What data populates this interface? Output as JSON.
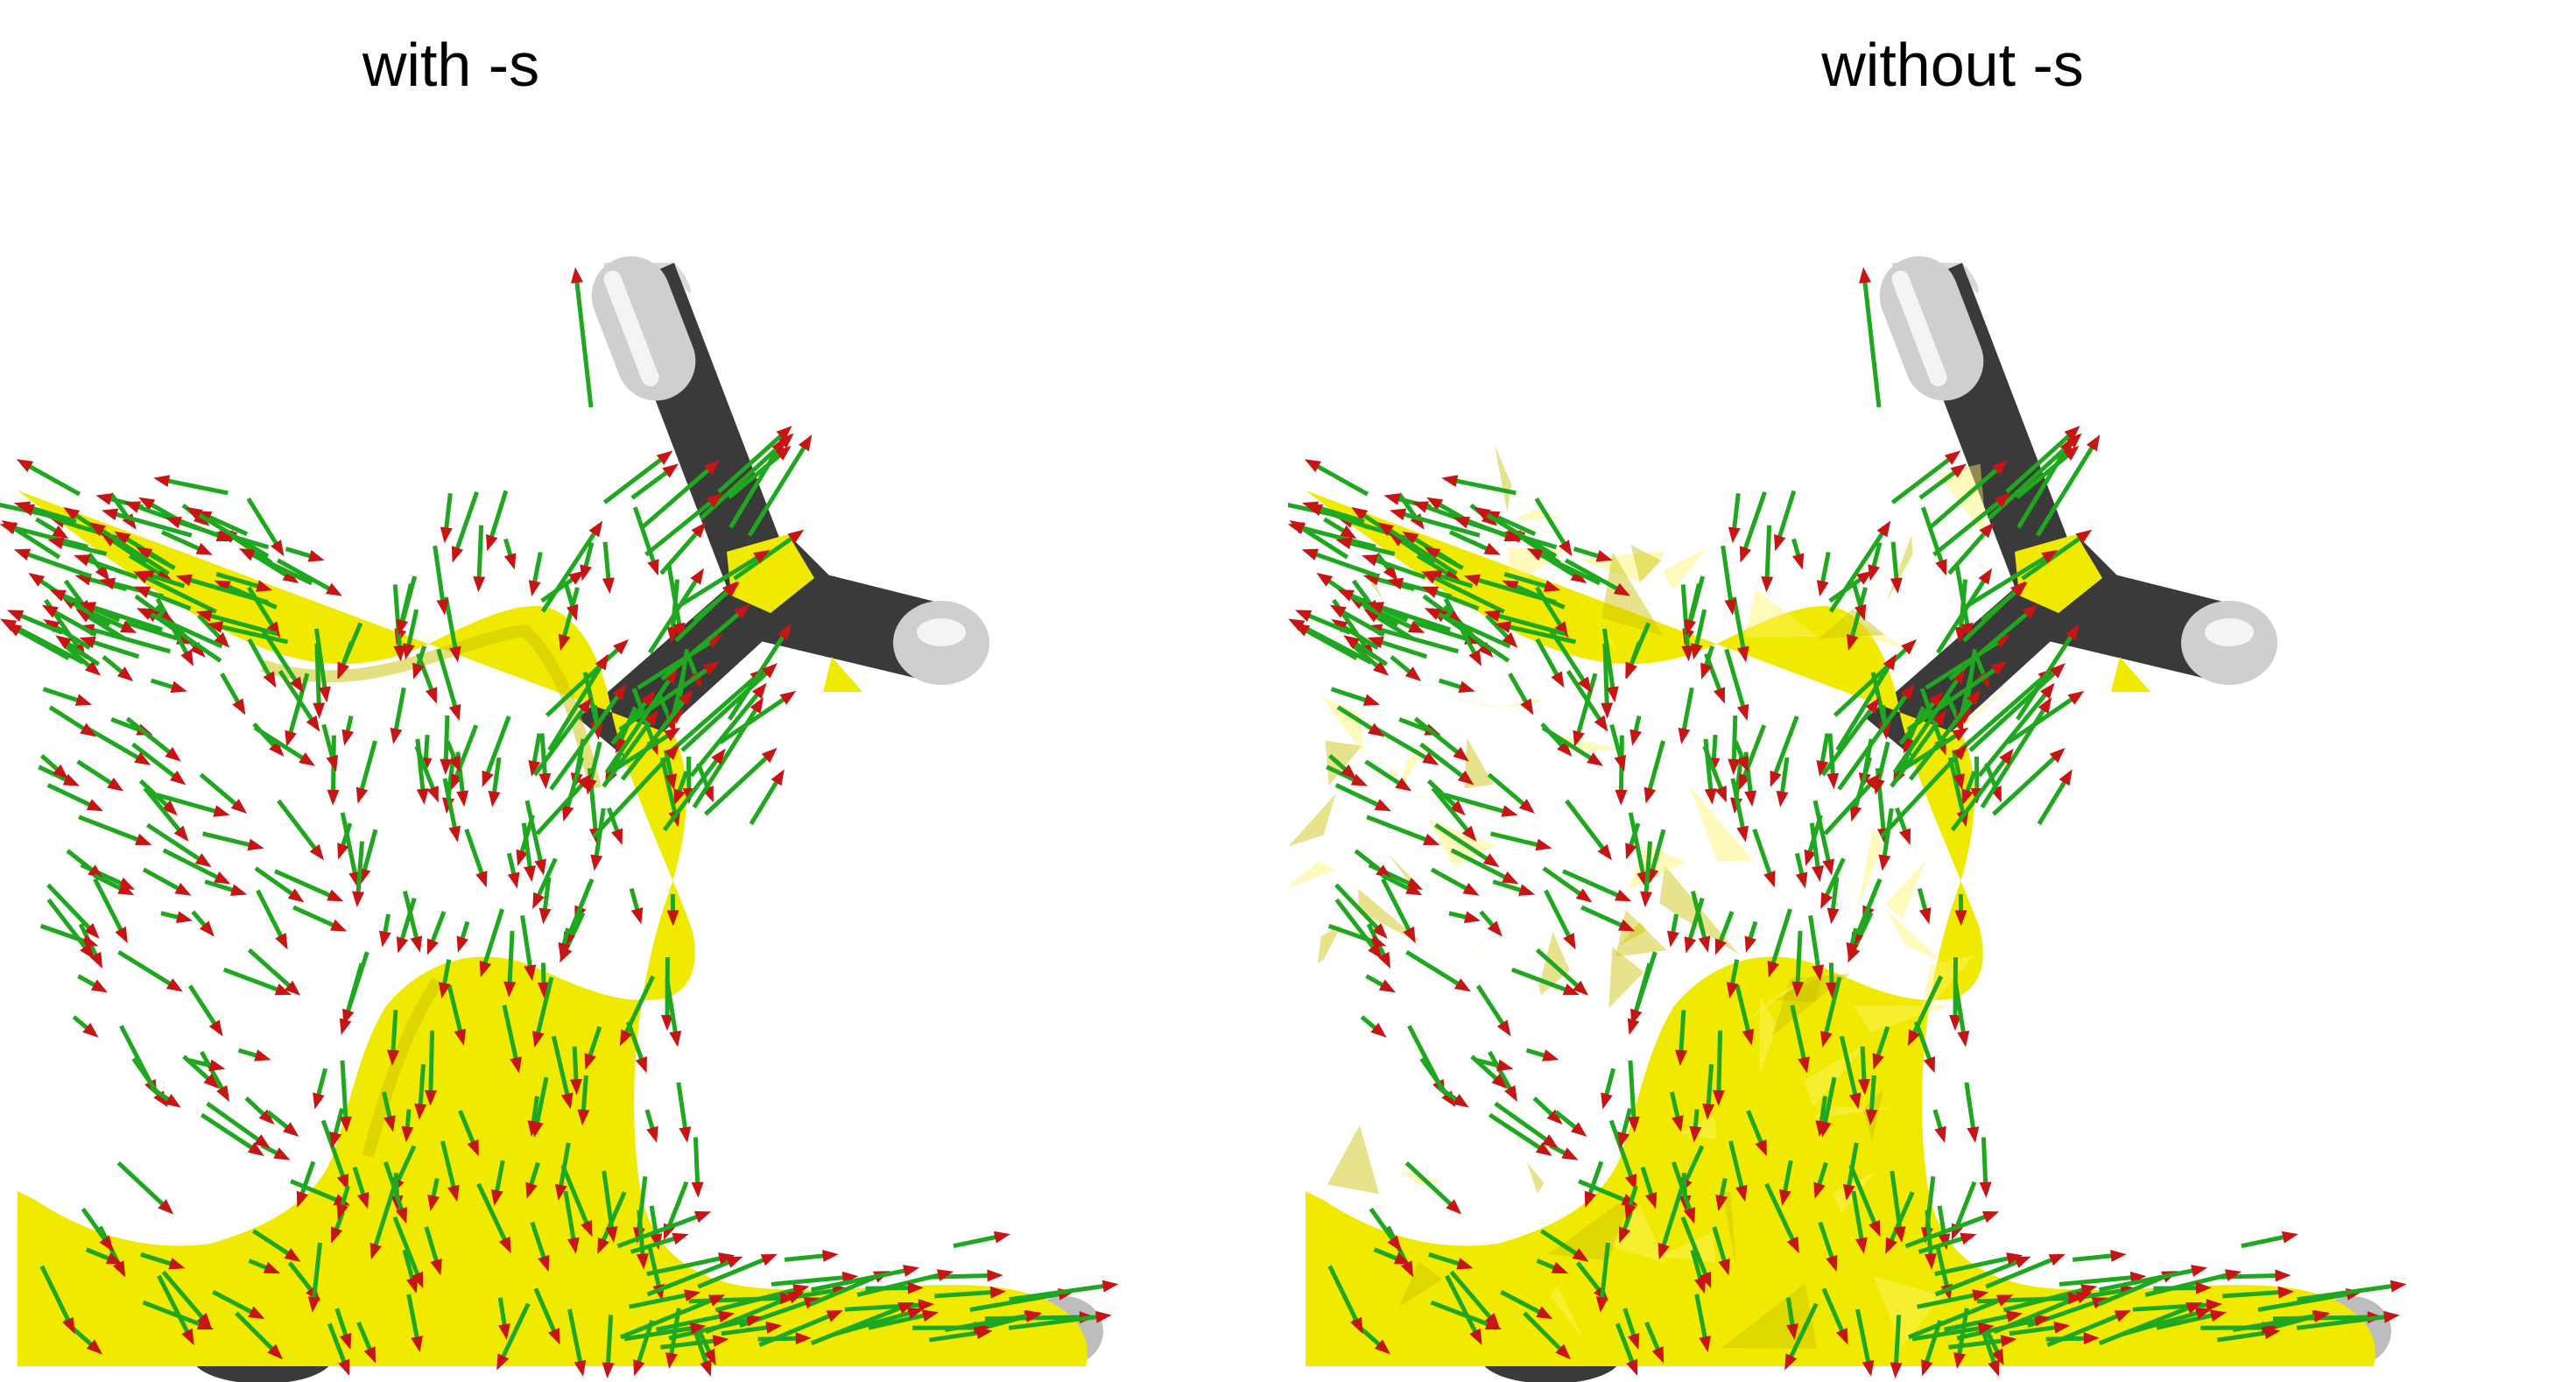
{
  "panels": [
    {
      "title": "with -s",
      "surface": "smooth"
    },
    {
      "title": "without -s",
      "surface": "faceted"
    }
  ],
  "colors": {
    "surface": "#f0ea00",
    "surface_shade": "#c9c200",
    "arrow_shaft": "#1fa81f",
    "arrow_head": "#c81414",
    "bond_dark": "#3a3a3a",
    "bond_light": "#d8d8d8",
    "background": "#ffffff"
  }
}
